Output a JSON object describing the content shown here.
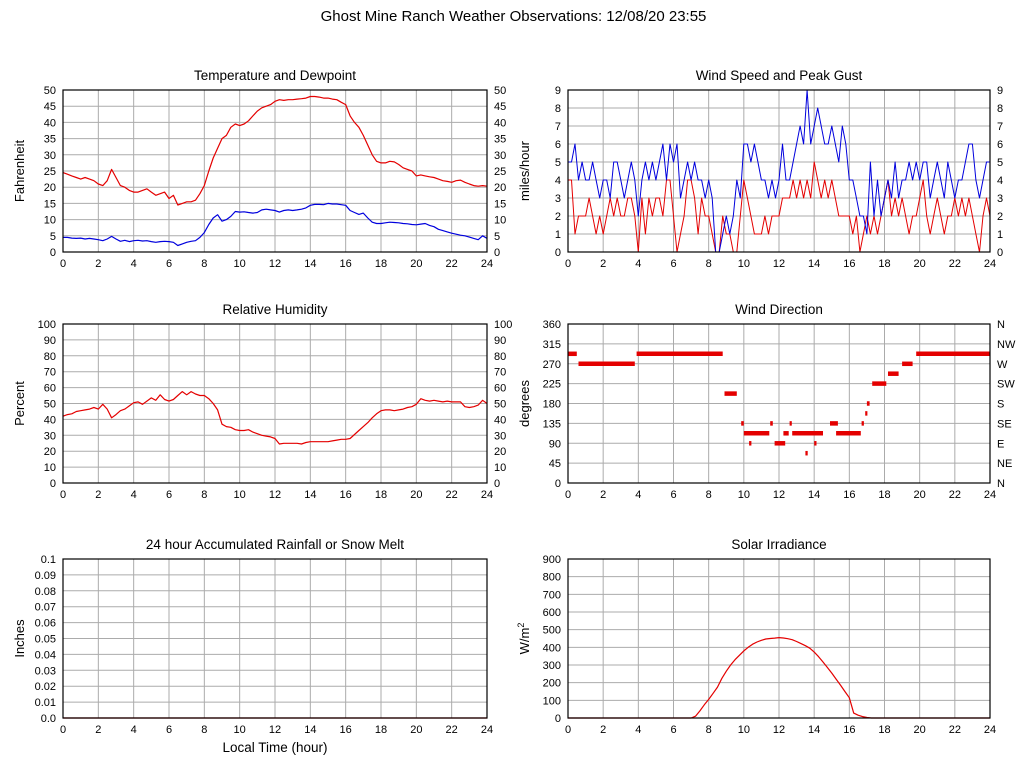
{
  "title": "Ghost Mine Ranch Weather Observations: 12/08/20 23:55",
  "chart_data": [
    {
      "id": "temperature_dewpoint",
      "type": "line",
      "title": "Temperature and Dewpoint",
      "ylabel": "Fahrenheit",
      "xlabel": "",
      "xlim": [
        0,
        24
      ],
      "xtick_step": 2,
      "ylim": [
        0,
        50
      ],
      "ytick_step": 5,
      "right_tick_labels": "mirror",
      "grid": true,
      "series": [
        {
          "name": "temperature",
          "color": "#e40000",
          "x_start": 0,
          "x_step": 0.25,
          "values": [
            24.5,
            24,
            23.5,
            23,
            22.5,
            23,
            22.5,
            22,
            21,
            20.5,
            22,
            25.5,
            23,
            20.5,
            20,
            19,
            18.5,
            18.5,
            19,
            19.5,
            18.5,
            17.5,
            18,
            18.5,
            16.5,
            17.5,
            14.5,
            15,
            15.5,
            15.5,
            16,
            18,
            20.5,
            25,
            29,
            32,
            35,
            36,
            38.5,
            39.5,
            39,
            39.5,
            40.5,
            42,
            43.5,
            44.5,
            45,
            45.5,
            46.5,
            47,
            46.8,
            47,
            47,
            47.2,
            47.3,
            47.5,
            48,
            48,
            47.8,
            47.5,
            47.5,
            47.2,
            47,
            46.2,
            45.5,
            42,
            40,
            38.5,
            36,
            33,
            30,
            28,
            27.5,
            27.5,
            28,
            27.8,
            27,
            26,
            25.5,
            25,
            23.5,
            23.8,
            23.5,
            23.2,
            23,
            22.5,
            22,
            21.8,
            21.5,
            22,
            22.2,
            21.5,
            21,
            20.5,
            20.3,
            20.5,
            20.3
          ]
        },
        {
          "name": "dewpoint",
          "color": "#0000dd",
          "x_start": 0,
          "x_step": 0.25,
          "values": [
            4.5,
            4.5,
            4.3,
            4.2,
            4.3,
            4,
            4.2,
            4,
            3.8,
            3.5,
            4,
            4.8,
            4,
            3.3,
            3.6,
            3.2,
            3.5,
            3.6,
            3.4,
            3.5,
            3.2,
            3,
            3.2,
            3.3,
            3.2,
            3,
            2,
            2.5,
            3,
            3.3,
            3.5,
            4.5,
            6,
            8.5,
            10.5,
            11.5,
            9.5,
            10,
            11,
            12.5,
            12.3,
            12.4,
            12.2,
            12,
            12.2,
            13,
            13.2,
            13,
            12.8,
            12.3,
            12.8,
            13,
            12.8,
            13,
            13.2,
            13.6,
            14.4,
            14.7,
            14.7,
            14.6,
            15,
            14.8,
            14.8,
            14.6,
            14.4,
            12.8,
            12.2,
            11.6,
            12,
            10.5,
            9.2,
            8.8,
            8.8,
            9,
            9.2,
            9.1,
            9,
            8.8,
            8.7,
            8.5,
            8.4,
            8.6,
            8.8,
            8.2,
            7.8,
            7,
            6.6,
            6.2,
            5.8,
            5.5,
            5.2,
            5,
            4.6,
            4.2,
            3.8,
            5,
            4.2
          ]
        }
      ]
    },
    {
      "id": "wind_speed_gust",
      "type": "line",
      "title": "Wind Speed and Peak Gust",
      "ylabel": "miles/hour",
      "xlabel": "",
      "xlim": [
        0,
        24
      ],
      "xtick_step": 2,
      "ylim": [
        0,
        9
      ],
      "ytick_step": 1,
      "right_tick_labels": "mirror",
      "grid": true,
      "series": [
        {
          "name": "wind-speed",
          "color": "#e40000",
          "width": 1,
          "x_start": 0,
          "x_step": 0.2,
          "values": [
            4,
            4,
            1,
            2,
            2,
            2,
            3,
            2,
            1,
            2,
            1,
            2,
            3,
            2,
            3,
            2,
            2,
            3,
            3,
            2,
            0,
            3,
            1,
            3,
            2,
            3,
            3,
            2,
            4,
            4,
            2,
            0,
            1,
            2,
            4,
            4,
            3,
            1,
            3,
            2,
            2,
            1,
            0,
            0,
            2,
            1,
            1,
            0,
            0,
            2,
            4,
            3,
            2,
            1,
            1,
            1,
            2,
            1,
            2,
            2,
            2,
            3,
            3,
            3,
            4,
            3,
            4,
            3,
            4,
            3,
            5,
            4,
            3,
            4,
            3,
            4,
            3,
            2,
            2,
            2,
            2,
            1,
            2,
            0,
            1,
            2,
            1,
            2,
            1,
            2,
            3,
            4,
            2,
            3,
            2,
            3,
            2,
            1,
            2,
            2,
            3,
            4,
            2,
            1,
            2,
            3,
            2,
            1,
            2,
            2,
            3,
            2,
            3,
            2,
            3,
            2,
            1,
            0,
            2,
            3,
            2
          ]
        },
        {
          "name": "peak-gust",
          "color": "#0000dd",
          "width": 1,
          "x_start": 0,
          "x_step": 0.2,
          "values": [
            5,
            5,
            6,
            4,
            5,
            4,
            4,
            5,
            4,
            3,
            4,
            4,
            3,
            5,
            5,
            4,
            3,
            4,
            5,
            4,
            2,
            4,
            5,
            4,
            5,
            4,
            5,
            6,
            4,
            6,
            5,
            6,
            3,
            4,
            5,
            4,
            5,
            4,
            4,
            3,
            4,
            3,
            0,
            0,
            1,
            2,
            1,
            2,
            4,
            3,
            6,
            6,
            5,
            6,
            5,
            4,
            4,
            3,
            4,
            3,
            4,
            6,
            4,
            4,
            5,
            6,
            7,
            6,
            9,
            6,
            7,
            8,
            7,
            6,
            6,
            7,
            6,
            5,
            7,
            6,
            4,
            4,
            3,
            2,
            2,
            1,
            5,
            2,
            4,
            2,
            3,
            4,
            3,
            5,
            3,
            4,
            4,
            5,
            4,
            5,
            4,
            5,
            5,
            3,
            4,
            5,
            4,
            3,
            5,
            4,
            3,
            4,
            4,
            5,
            6,
            6,
            4,
            3,
            4,
            5,
            5
          ]
        }
      ]
    },
    {
      "id": "relative_humidity",
      "type": "line",
      "title": "Relative Humidity",
      "ylabel": "Percent",
      "xlabel": "",
      "xlim": [
        0,
        24
      ],
      "xtick_step": 2,
      "ylim": [
        0,
        100
      ],
      "ytick_step": 10,
      "right_tick_labels": "mirror",
      "grid": true,
      "series": [
        {
          "name": "humidity",
          "color": "#e40000",
          "x_start": 0,
          "x_step": 0.25,
          "values": [
            42,
            43,
            43.5,
            45,
            45.5,
            46,
            46.5,
            47.5,
            46.5,
            49.5,
            46.5,
            41,
            43,
            45.5,
            46.5,
            48.5,
            50.5,
            51,
            49.5,
            51.5,
            53.5,
            52,
            55.5,
            52.5,
            51.5,
            52.5,
            55,
            57.5,
            55.5,
            57.5,
            56,
            55,
            55,
            53,
            50,
            46,
            37,
            35.5,
            35,
            33.5,
            33,
            33,
            33.5,
            32,
            31,
            30,
            29.5,
            29,
            28,
            24.5,
            25,
            25,
            25,
            25,
            24.5,
            25.5,
            26,
            26,
            26,
            26,
            26,
            26.5,
            27,
            27.5,
            27.5,
            28,
            30.5,
            33,
            35.5,
            38,
            41,
            43.5,
            45.5,
            46,
            46,
            45.5,
            46,
            46.5,
            47.5,
            48,
            49.5,
            53,
            52,
            51.5,
            52,
            51.5,
            51,
            51.5,
            51,
            51,
            51,
            48,
            47.5,
            48,
            49,
            52,
            50
          ]
        }
      ]
    },
    {
      "id": "wind_direction",
      "type": "scatter",
      "title": "Wind Direction",
      "ylabel": "degrees",
      "xlabel": "",
      "xlim": [
        0,
        24
      ],
      "xtick_step": 2,
      "ylim": [
        0,
        360
      ],
      "ytick_step": 45,
      "right_tick_labels": [
        "N",
        "NE",
        "E",
        "SE",
        "S",
        "SW",
        "W",
        "NW",
        "N"
      ],
      "grid": true,
      "series": [
        {
          "name": "wind-direction",
          "color": "#e40000",
          "segments": [
            [
              0.0,
              0.5,
              292.5
            ],
            [
              0.6,
              3.8,
              270
            ],
            [
              3.9,
              8.8,
              292.5
            ],
            [
              8.9,
              9.6,
              202.5
            ],
            [
              9.85,
              10.0,
              135
            ],
            [
              10.0,
              11.45,
              112.5
            ],
            [
              10.3,
              10.42,
              90
            ],
            [
              11.5,
              11.65,
              135
            ],
            [
              11.75,
              12.35,
              90
            ],
            [
              12.25,
              12.55,
              112.5
            ],
            [
              12.6,
              12.72,
              135
            ],
            [
              12.75,
              14.5,
              112.5
            ],
            [
              13.5,
              13.62,
              67.5
            ],
            [
              14.0,
              14.12,
              90
            ],
            [
              14.9,
              15.35,
              135
            ],
            [
              15.25,
              16.65,
              112.5
            ],
            [
              16.7,
              16.82,
              135
            ],
            [
              16.9,
              17.0,
              157.5
            ],
            [
              17.0,
              17.15,
              180
            ],
            [
              17.3,
              18.1,
              225
            ],
            [
              18.2,
              18.8,
              247.5
            ],
            [
              19.0,
              19.6,
              270
            ],
            [
              19.8,
              24.0,
              292.5
            ]
          ]
        }
      ]
    },
    {
      "id": "rainfall",
      "type": "line",
      "title": "24 hour Accumulated Rainfall or Snow Melt",
      "ylabel": "Inches",
      "xlabel": "Local Time (hour)",
      "xlim": [
        0,
        24
      ],
      "xtick_step": 2,
      "ylim": [
        0,
        0.1
      ],
      "ytick_step": 0.01,
      "ytick_labels": [
        "0.0",
        "0.01",
        "0.02",
        "0.03",
        "0.04",
        "0.05",
        "0.06",
        "0.07",
        "0.08",
        "0.09",
        "0.1"
      ],
      "right_tick_labels": "none",
      "grid": true,
      "series": [
        {
          "name": "rainfall",
          "color": "#e40000",
          "x_start": 0,
          "x_step": 24,
          "values": [
            0,
            0
          ]
        }
      ]
    },
    {
      "id": "solar_irradiance",
      "type": "line",
      "title": "Solar Irradiance",
      "ylabel": "W/m",
      "ylabel_sup": "2",
      "xlabel": "",
      "xlim": [
        0,
        24
      ],
      "xtick_step": 2,
      "ylim": [
        0,
        900
      ],
      "ytick_step": 100,
      "right_tick_labels": "none",
      "grid": true,
      "series": [
        {
          "name": "solar",
          "color": "#e40000",
          "x_start": 0,
          "x_step": 0.25,
          "values": [
            0,
            0,
            0,
            0,
            0,
            0,
            0,
            0,
            0,
            0,
            0,
            0,
            0,
            0,
            0,
            0,
            0,
            0,
            0,
            0,
            0,
            0,
            0,
            0,
            0,
            0,
            0,
            0,
            0,
            10,
            40,
            75,
            105,
            140,
            175,
            225,
            265,
            300,
            330,
            355,
            380,
            400,
            418,
            430,
            440,
            447,
            450,
            452,
            455,
            453,
            449,
            443,
            433,
            421,
            409,
            395,
            373,
            347,
            317,
            286,
            254,
            220,
            186,
            150,
            115,
            28,
            16,
            8,
            3,
            0,
            0,
            0,
            0,
            0,
            0,
            0,
            0,
            0,
            0,
            0,
            0,
            0,
            0,
            0,
            0,
            0,
            0,
            0,
            0,
            0,
            0,
            0,
            0,
            0,
            0,
            0,
            0
          ]
        }
      ]
    }
  ]
}
